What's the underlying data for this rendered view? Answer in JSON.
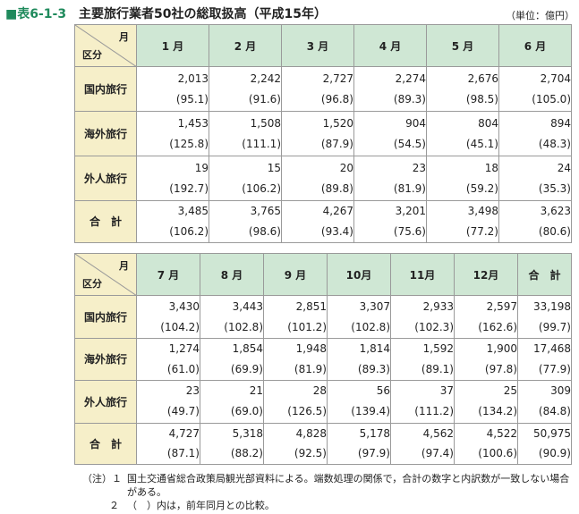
{
  "header": {
    "label": "■表6-1-3",
    "title": "主要旅行業者50社の総取扱高（平成15年）",
    "unit": "（単位：億円）"
  },
  "corner": {
    "top": "月",
    "bottom": "区分"
  },
  "row_labels": [
    "国内旅行",
    "海外旅行",
    "外人旅行",
    "合　計"
  ],
  "table1": {
    "months": [
      "1 月",
      "2 月",
      "3 月",
      "4 月",
      "5 月",
      "6 月"
    ],
    "rows": [
      [
        [
          "2,013",
          "(95.1)"
        ],
        [
          "2,242",
          "(91.6)"
        ],
        [
          "2,727",
          "(96.8)"
        ],
        [
          "2,274",
          "(89.3)"
        ],
        [
          "2,676",
          "(98.5)"
        ],
        [
          "2,704",
          "(105.0)"
        ]
      ],
      [
        [
          "1,453",
          "(125.8)"
        ],
        [
          "1,508",
          "(111.1)"
        ],
        [
          "1,520",
          "(87.9)"
        ],
        [
          "904",
          "(54.5)"
        ],
        [
          "804",
          "(45.1)"
        ],
        [
          "894",
          "(48.3)"
        ]
      ],
      [
        [
          "19",
          "(192.7)"
        ],
        [
          "15",
          "(106.2)"
        ],
        [
          "20",
          "(89.8)"
        ],
        [
          "23",
          "(81.9)"
        ],
        [
          "18",
          "(59.2)"
        ],
        [
          "24",
          "(35.3)"
        ]
      ],
      [
        [
          "3,485",
          "(106.2)"
        ],
        [
          "3,765",
          "(98.6)"
        ],
        [
          "4,267",
          "(93.4)"
        ],
        [
          "3,201",
          "(75.6)"
        ],
        [
          "3,498",
          "(77.2)"
        ],
        [
          "3,623",
          "(80.6)"
        ]
      ]
    ]
  },
  "table2": {
    "months": [
      "7 月",
      "8 月",
      "9 月",
      "10月",
      "11月",
      "12月",
      "合　計"
    ],
    "rows": [
      [
        [
          "3,430",
          "(104.2)"
        ],
        [
          "3,443",
          "(102.8)"
        ],
        [
          "2,851",
          "(101.2)"
        ],
        [
          "3,307",
          "(102.8)"
        ],
        [
          "2,933",
          "(102.3)"
        ],
        [
          "2,597",
          "(162.6)"
        ],
        [
          "33,198",
          "(99.7)"
        ]
      ],
      [
        [
          "1,274",
          "(61.0)"
        ],
        [
          "1,854",
          "(69.9)"
        ],
        [
          "1,948",
          "(81.9)"
        ],
        [
          "1,814",
          "(89.3)"
        ],
        [
          "1,592",
          "(89.1)"
        ],
        [
          "1,900",
          "(97.8)"
        ],
        [
          "17,468",
          "(77.9)"
        ]
      ],
      [
        [
          "23",
          "(49.7)"
        ],
        [
          "21",
          "(69.0)"
        ],
        [
          "28",
          "(126.5)"
        ],
        [
          "56",
          "(139.4)"
        ],
        [
          "37",
          "(111.2)"
        ],
        [
          "25",
          "(134.2)"
        ],
        [
          "309",
          "(84.8)"
        ]
      ],
      [
        [
          "4,727",
          "(87.1)"
        ],
        [
          "5,318",
          "(88.2)"
        ],
        [
          "4,828",
          "(92.5)"
        ],
        [
          "5,178",
          "(97.9)"
        ],
        [
          "4,562",
          "(97.4)"
        ],
        [
          "4,522",
          "(100.6)"
        ],
        [
          "50,975",
          "(90.9)"
        ]
      ]
    ]
  },
  "notes": [
    {
      "head": "（注）１",
      "text": "国土交通省総合政策局観光部資料による。端数処理の関係で，合計の数字と内訳数が一致しない場合がある。"
    },
    {
      "head": "２",
      "text": "（　）内は，前年同月との比較。"
    }
  ]
}
